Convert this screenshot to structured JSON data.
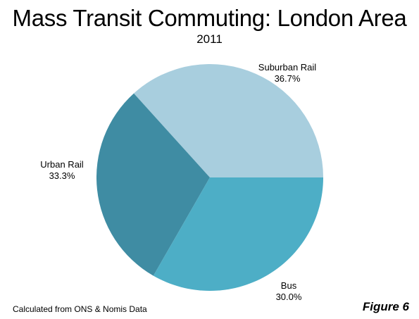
{
  "chart_data": {
    "type": "pie",
    "title": "Mass Transit Commuting: London Area",
    "subtitle": "2011",
    "slices": [
      {
        "label": "Suburban Rail",
        "value": 36.7,
        "value_label": "36.7%",
        "color": "#a8cede"
      },
      {
        "label": "Bus",
        "value": 30.0,
        "value_label": "30.0%",
        "color": "#3f8ca3"
      },
      {
        "label": "Urban Rail",
        "value": 33.3,
        "value_label": "33.3%",
        "color": "#4daec6"
      }
    ]
  },
  "footer": {
    "source": "Calculated from ONS & Nomis Data",
    "figure_label": "Figure 6"
  }
}
